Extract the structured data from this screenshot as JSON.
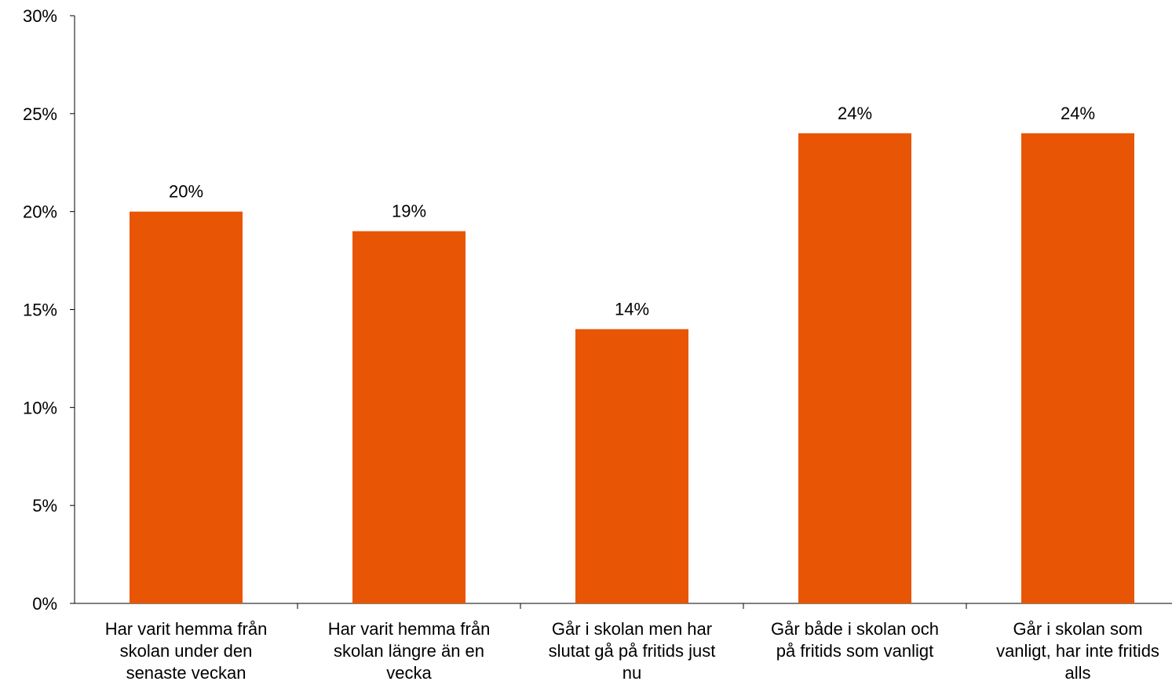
{
  "chart_data": {
    "type": "bar",
    "title": "",
    "xlabel": "",
    "ylabel": "",
    "ylim": [
      0,
      30
    ],
    "y_tick_step": 5,
    "y_tick_format": "percent",
    "grid": false,
    "legend": "none",
    "bar_color": "#E85505",
    "categories": [
      "Har varit hemma från skolan under den senaste veckan",
      "Har varit hemma från skolan längre än en vecka",
      "Går i skolan men har slutat gå på fritids just nu",
      "Går både i skolan och på fritids som vanligt",
      "Går i skolan som vanligt, har inte fritids alls"
    ],
    "category_label_lines": [
      [
        "Har varit hemma från",
        "skolan under den",
        "senaste veckan"
      ],
      [
        "Har varit hemma från",
        "skolan längre än en",
        "vecka"
      ],
      [
        "Går i skolan men har",
        "slutat gå på fritids just",
        "nu"
      ],
      [
        "Går både i skolan och",
        "på fritids som vanligt"
      ],
      [
        "Går i skolan som",
        "vanligt, har inte fritids",
        "alls"
      ]
    ],
    "values": [
      20,
      19,
      14,
      24,
      24
    ],
    "data_labels": [
      "20%",
      "19%",
      "14%",
      "24%",
      "24%"
    ]
  }
}
